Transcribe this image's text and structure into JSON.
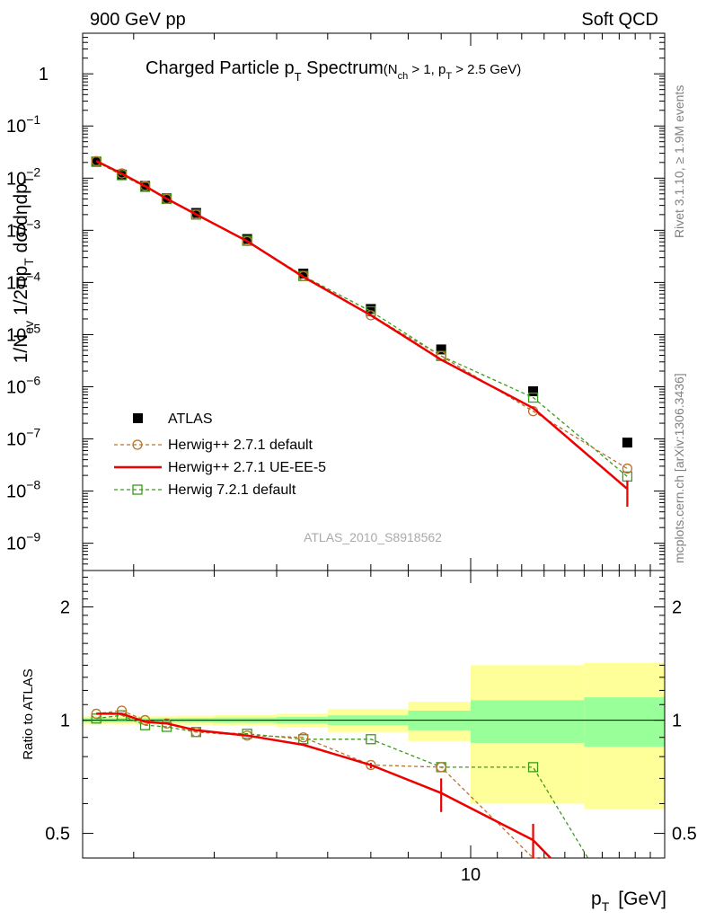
{
  "header": {
    "left": "900 GeV pp",
    "right": "Soft QCD"
  },
  "side_labels": {
    "rivet": "Rivet 3.1.10, ≥ 1.9M events",
    "mcplots": "mcplots.cern.ch [arXiv:1306.3436]"
  },
  "watermark": "ATLAS_2010_S8918562",
  "colors": {
    "atlas": "#000000",
    "herwigpp_default": "#b8732e",
    "herwigpp_ueee5": "#ee0000",
    "herwig7_default": "#3a9a1a",
    "band_inner": "#99ff99",
    "band_outer": "#ffff99"
  },
  "chart_data": [
    {
      "type": "scatter",
      "title": "Charged Particle p_T Spectrum (N_ch > 1, p_T > 2.5 GeV)",
      "title_main": "Charged Particle p",
      "title_main_sub": "T",
      "title_main_tail": " Spectrum",
      "title_cut_a": "(N",
      "title_cut_a_sub": "ch",
      "title_cut_b": " > 1, p",
      "title_cut_b_sub": "T",
      "title_cut_c": " > 2.5 GeV)",
      "ylabel": "1/N_ev 1/2πp_T dσ/dηdp_T",
      "ylabel_p1": "1/N",
      "ylabel_p1_sub": "ev",
      "ylabel_p2": " 1/2πp",
      "ylabel_p2_sub": "T",
      "ylabel_p3": " dσ/dηdp",
      "ylabel_p3_sub": "T",
      "yscale": "log",
      "ylim": [
        3e-10,
        6
      ],
      "xscale": "log",
      "xlim": [
        2.5,
        20
      ],
      "y_tick_labels": [
        {
          "v": 1,
          "b": "1",
          "e": ""
        },
        {
          "v": 0.1,
          "b": "10",
          "e": "−1"
        },
        {
          "v": 0.01,
          "b": "10",
          "e": "−2"
        },
        {
          "v": 0.001,
          "b": "10",
          "e": "−3"
        },
        {
          "v": 0.0001,
          "b": "10",
          "e": "−4"
        },
        {
          "v": 1e-05,
          "b": "10",
          "e": "−5"
        },
        {
          "v": 1e-06,
          "b": "10",
          "e": "−6"
        },
        {
          "v": 1e-07,
          "b": "10",
          "e": "−7"
        },
        {
          "v": 1e-08,
          "b": "10",
          "e": "−8"
        },
        {
          "v": 1e-09,
          "b": "10",
          "e": "−9"
        }
      ],
      "legend_position": "lower-left",
      "x": [
        2.625,
        2.875,
        3.125,
        3.375,
        3.75,
        4.5,
        5.5,
        7.0,
        9.0,
        12.5,
        17.5
      ],
      "series": [
        {
          "name": "ATLAS",
          "values": [
            0.0205,
            0.0117,
            0.0071,
            0.0041,
            0.00215,
            0.00068,
            0.000148,
            3.1e-05,
            5.2e-06,
            8.2e-07,
            8.5e-08
          ]
        },
        {
          "name": "Herwig++ 2.7.1 default",
          "values": [
            0.0212,
            0.0123,
            0.0071,
            0.004,
            0.002,
            0.00062,
            0.000133,
            2.35e-05,
            3.9e-06,
            3.4e-07,
            2.7e-08
          ]
        },
        {
          "name": "Herwig++ 2.7.1 UE-EE-5",
          "values": [
            0.0213,
            0.0122,
            0.00705,
            0.00405,
            0.00202,
            0.00062,
            0.000128,
            2.35e-05,
            3.3e-06,
            3.9e-07,
            1.1e-08
          ]
        },
        {
          "name": "Herwig 7.2.1 default",
          "values": [
            0.0208,
            0.0114,
            0.0068,
            0.004,
            0.002,
            0.00063,
            0.000133,
            2.8e-05,
            3.9e-06,
            6.2e-07,
            1.9e-08
          ]
        }
      ]
    },
    {
      "type": "line",
      "ylabel": "Ratio to ATLAS",
      "xlabel": "p_T [GeV]",
      "xlabel_main": "p",
      "xlabel_sub": "T",
      "xlabel_unit": "[GeV]",
      "yscale": "log",
      "ylim": [
        0.43,
        2.5
      ],
      "y_tick_labels": [
        {
          "v": 2,
          "label": "2"
        },
        {
          "v": 1,
          "label": "1"
        },
        {
          "v": 0.5,
          "label": "0.5"
        }
      ],
      "x_tick_labels": [
        {
          "v": 10,
          "label": "10"
        }
      ],
      "x": [
        2.625,
        2.875,
        3.125,
        3.375,
        3.75,
        4.5,
        5.5,
        7.0,
        9.0,
        12.5
      ],
      "bin_edges": [
        2.5,
        2.75,
        3.0,
        3.25,
        3.5,
        4.0,
        5.0,
        6.0,
        8.0,
        10.0,
        15.0,
        20.0
      ],
      "band_inner": [
        0.013,
        0.013,
        0.013,
        0.013,
        0.014,
        0.016,
        0.02,
        0.03,
        0.06,
        0.13,
        0.15
      ],
      "band_outer": [
        0.026,
        0.026,
        0.026,
        0.026,
        0.028,
        0.032,
        0.04,
        0.07,
        0.12,
        0.4,
        0.42
      ],
      "series": [
        {
          "name": "Herwig++ 2.7.1 default",
          "values": [
            1.04,
            1.06,
            1.0,
            0.98,
            0.93,
            0.91,
            0.9,
            0.76,
            0.75,
            0.42
          ]
        },
        {
          "name": "Herwig++ 2.7.1 UE-EE-5",
          "values": [
            1.04,
            1.04,
            0.99,
            0.98,
            0.94,
            0.91,
            0.86,
            0.76,
            0.64,
            0.48
          ]
        },
        {
          "name": "Herwig 7.2.1 default",
          "values": [
            1.01,
            1.03,
            0.97,
            0.96,
            0.93,
            0.92,
            0.89,
            0.89,
            0.75,
            0.75
          ]
        }
      ]
    }
  ]
}
